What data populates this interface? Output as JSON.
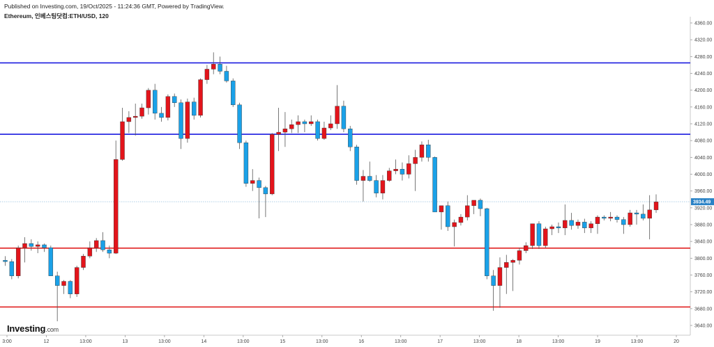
{
  "header": {
    "published": "Published on Investing.com, 19/Oct/2025 - 11:24:36 GMT, Powered by TradingView.",
    "symbol": "Ethereum, 인베스팅닷컴:ETH/USD, 120"
  },
  "logo": {
    "brand": "Investing",
    "suffix": ".com"
  },
  "chart_data": {
    "type": "candlestick",
    "title": "Ethereum, 인베스팅닷컴:ETH/USD, 120",
    "interval": "120",
    "ylim": [
      3620,
      4370
    ],
    "y_ticks": [
      3640,
      3680,
      3720,
      3760,
      3800,
      3840,
      3880,
      3920,
      3960,
      4000,
      4040,
      4080,
      4120,
      4160,
      4200,
      4240,
      4280,
      4320,
      4360
    ],
    "x_ticks": [
      "3:00",
      "12",
      "13:00",
      "13",
      "13:00",
      "14",
      "13:00",
      "15",
      "13:00",
      "16",
      "13:00",
      "17",
      "13:00",
      "18",
      "13:00",
      "19",
      "13:00",
      "20"
    ],
    "current_price": 3934.49,
    "current_price_label": "3934.49",
    "horizontal_lines": [
      {
        "value": 4265,
        "color": "#1a1adf"
      },
      {
        "value": 4095,
        "color": "#1a1adf"
      },
      {
        "value": 3824,
        "color": "#e02020"
      },
      {
        "value": 3684,
        "color": "#e02020"
      }
    ],
    "up_color": "#e3141b",
    "down_color": "#1aa1e8",
    "candles": [
      [
        3795,
        3805,
        3782,
        3792
      ],
      [
        3792,
        3798,
        3750,
        3758
      ],
      [
        3758,
        3830,
        3752,
        3825
      ],
      [
        3825,
        3850,
        3790,
        3835
      ],
      [
        3835,
        3845,
        3818,
        3828
      ],
      [
        3828,
        3840,
        3812,
        3832
      ],
      [
        3832,
        3835,
        3815,
        3825
      ],
      [
        3825,
        3830,
        3760,
        3758
      ],
      [
        3758,
        3768,
        3650,
        3735
      ],
      [
        3735,
        3748,
        3715,
        3745
      ],
      [
        3745,
        3748,
        3705,
        3715
      ],
      [
        3715,
        3782,
        3708,
        3778
      ],
      [
        3778,
        3810,
        3772,
        3805
      ],
      [
        3805,
        3840,
        3800,
        3825
      ],
      [
        3825,
        3848,
        3815,
        3842
      ],
      [
        3842,
        3862,
        3815,
        3820
      ],
      [
        3820,
        3830,
        3800,
        3812
      ],
      [
        3812,
        4080,
        3810,
        4035
      ],
      [
        4035,
        4158,
        4032,
        4125
      ],
      [
        4125,
        4150,
        4098,
        4135
      ],
      [
        4135,
        4168,
        4092,
        4138
      ],
      [
        4138,
        4168,
        4132,
        4158
      ],
      [
        4158,
        4205,
        4142,
        4200
      ],
      [
        4200,
        4215,
        4130,
        4145
      ],
      [
        4145,
        4160,
        4125,
        4135
      ],
      [
        4135,
        4190,
        4128,
        4185
      ],
      [
        4185,
        4192,
        4160,
        4170
      ],
      [
        4170,
        4178,
        4060,
        4085
      ],
      [
        4085,
        4180,
        4075,
        4172
      ],
      [
        4172,
        4182,
        4130,
        4140
      ],
      [
        4140,
        4228,
        4135,
        4225
      ],
      [
        4225,
        4260,
        4215,
        4250
      ],
      [
        4250,
        4290,
        4238,
        4262
      ],
      [
        4262,
        4280,
        4238,
        4245
      ],
      [
        4245,
        4258,
        4218,
        4222
      ],
      [
        4222,
        4228,
        4160,
        4165
      ],
      [
        4165,
        4170,
        4060,
        4075
      ],
      [
        4075,
        4080,
        3970,
        3978
      ],
      [
        3978,
        4012,
        3960,
        3985
      ],
      [
        3985,
        3992,
        3895,
        3968
      ],
      [
        3968,
        3972,
        3898,
        3953
      ],
      [
        3953,
        4098,
        3950,
        4095
      ],
      [
        4095,
        4158,
        4055,
        4100
      ],
      [
        4100,
        4148,
        4065,
        4108
      ],
      [
        4108,
        4130,
        4098,
        4118
      ],
      [
        4118,
        4140,
        4098,
        4125
      ],
      [
        4125,
        4130,
        4100,
        4120
      ],
      [
        4120,
        4140,
        4115,
        4125
      ],
      [
        4125,
        4130,
        4080,
        4085
      ],
      [
        4085,
        4125,
        4082,
        4110
      ],
      [
        4110,
        4140,
        4105,
        4120
      ],
      [
        4120,
        4212,
        4108,
        4162
      ],
      [
        4162,
        4175,
        4100,
        4108
      ],
      [
        4108,
        4115,
        4055,
        4065
      ],
      [
        4065,
        4070,
        3975,
        3985
      ],
      [
        3985,
        4010,
        3935,
        3995
      ],
      [
        3995,
        4030,
        3982,
        3985
      ],
      [
        3985,
        3998,
        3945,
        3955
      ],
      [
        3955,
        3998,
        3940,
        3985
      ],
      [
        3985,
        4015,
        3982,
        4008
      ],
      [
        4008,
        4035,
        4000,
        4012
      ],
      [
        4012,
        4028,
        3985,
        4000
      ],
      [
        4000,
        4045,
        3990,
        4025
      ],
      [
        4025,
        4058,
        3960,
        4040
      ],
      [
        4040,
        4078,
        4030,
        4070
      ],
      [
        4070,
        4082,
        4030,
        4040
      ],
      [
        4040,
        4042,
        3910,
        3910
      ],
      [
        3910,
        3925,
        3868,
        3925
      ],
      [
        3925,
        3935,
        3865,
        3875
      ],
      [
        3875,
        3892,
        3828,
        3885
      ],
      [
        3885,
        3905,
        3878,
        3898
      ],
      [
        3898,
        3950,
        3890,
        3925
      ],
      [
        3925,
        3935,
        3905,
        3938
      ],
      [
        3938,
        3942,
        3900,
        3918
      ],
      [
        3918,
        3920,
        3750,
        3758
      ],
      [
        3758,
        3772,
        3675,
        3735
      ],
      [
        3735,
        3802,
        3682,
        3778
      ],
      [
        3778,
        3808,
        3715,
        3790
      ],
      [
        3790,
        3798,
        3722,
        3795
      ],
      [
        3795,
        3825,
        3785,
        3818
      ],
      [
        3818,
        3838,
        3812,
        3830
      ],
      [
        3830,
        3882,
        3822,
        3882
      ],
      [
        3882,
        3888,
        3822,
        3830
      ],
      [
        3830,
        3875,
        3825,
        3870
      ],
      [
        3870,
        3880,
        3855,
        3875
      ],
      [
        3875,
        3885,
        3860,
        3872
      ],
      [
        3872,
        3928,
        3855,
        3890
      ],
      [
        3890,
        3908,
        3868,
        3878
      ],
      [
        3878,
        3892,
        3870,
        3886
      ],
      [
        3886,
        3894,
        3860,
        3872
      ],
      [
        3872,
        3888,
        3860,
        3882
      ],
      [
        3882,
        3902,
        3858,
        3898
      ],
      [
        3898,
        3902,
        3890,
        3895
      ],
      [
        3895,
        3910,
        3888,
        3898
      ],
      [
        3898,
        3902,
        3885,
        3892
      ],
      [
        3892,
        3898,
        3858,
        3880
      ],
      [
        3880,
        3915,
        3875,
        3908
      ],
      [
        3908,
        3915,
        3880,
        3905
      ],
      [
        3905,
        3928,
        3890,
        3895
      ],
      [
        3895,
        3950,
        3845,
        3915
      ],
      [
        3915,
        3952,
        3908,
        3934
      ]
    ]
  }
}
